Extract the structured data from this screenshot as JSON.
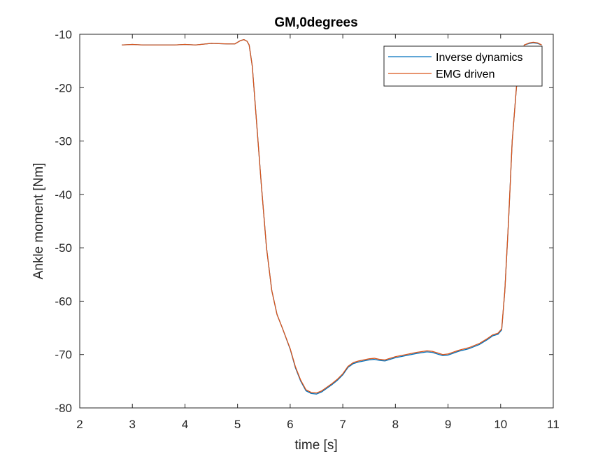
{
  "chart_data": {
    "type": "line",
    "title": "GM,0degrees",
    "xlabel": "time  [s]",
    "ylabel": "Ankle moment [Nm]",
    "xlim": [
      2,
      11
    ],
    "ylim": [
      -80,
      -10
    ],
    "xticks": [
      2,
      3,
      4,
      5,
      6,
      7,
      8,
      9,
      10,
      11
    ],
    "yticks": [
      -80,
      -70,
      -60,
      -50,
      -40,
      -30,
      -20,
      -10
    ],
    "grid": false,
    "legend_position": "top-right",
    "series": [
      {
        "name": "Inverse dynamics",
        "color": "#0072BD",
        "x": [
          2.8,
          3.0,
          3.2,
          3.5,
          3.8,
          4.0,
          4.2,
          4.5,
          4.8,
          4.95,
          5.05,
          5.12,
          5.18,
          5.22,
          5.28,
          5.35,
          5.45,
          5.55,
          5.65,
          5.75,
          5.85,
          6.0,
          6.1,
          6.2,
          6.3,
          6.4,
          6.5,
          6.6,
          6.7,
          6.8,
          6.9,
          7.0,
          7.1,
          7.2,
          7.3,
          7.5,
          7.6,
          7.7,
          7.8,
          8.0,
          8.2,
          8.4,
          8.6,
          8.7,
          8.8,
          8.9,
          9.0,
          9.2,
          9.4,
          9.6,
          9.75,
          9.85,
          9.95,
          10.02,
          10.08,
          10.15,
          10.22,
          10.3,
          10.38,
          10.45,
          10.55,
          10.62,
          10.7,
          10.78
        ],
        "y": [
          -12.0,
          -11.9,
          -12.0,
          -12.0,
          -12.0,
          -11.9,
          -12.0,
          -11.7,
          -11.8,
          -11.8,
          -11.2,
          -11.0,
          -11.3,
          -12.0,
          -16.0,
          -25.0,
          -38.0,
          -50.0,
          -58.0,
          -62.5,
          -65.0,
          -69.0,
          -72.5,
          -75.0,
          -76.8,
          -77.3,
          -77.4,
          -77.0,
          -76.3,
          -75.6,
          -74.8,
          -73.8,
          -72.4,
          -71.7,
          -71.4,
          -71.0,
          -70.9,
          -71.1,
          -71.2,
          -70.6,
          -70.2,
          -69.8,
          -69.5,
          -69.6,
          -69.9,
          -70.2,
          -70.1,
          -69.4,
          -68.9,
          -68.1,
          -67.2,
          -66.5,
          -66.2,
          -65.4,
          -58.0,
          -45.0,
          -30.0,
          -20.0,
          -14.0,
          -12.0,
          -11.7,
          -11.6,
          -11.7,
          -12.0
        ]
      },
      {
        "name": "EMG driven",
        "color": "#D95319",
        "x": [
          2.8,
          3.0,
          3.2,
          3.5,
          3.8,
          4.0,
          4.2,
          4.5,
          4.8,
          4.95,
          5.05,
          5.12,
          5.18,
          5.22,
          5.28,
          5.35,
          5.45,
          5.55,
          5.65,
          5.75,
          5.85,
          6.0,
          6.1,
          6.2,
          6.3,
          6.4,
          6.5,
          6.6,
          6.7,
          6.8,
          6.9,
          7.0,
          7.1,
          7.2,
          7.3,
          7.5,
          7.6,
          7.7,
          7.8,
          8.0,
          8.2,
          8.4,
          8.6,
          8.7,
          8.8,
          8.9,
          9.0,
          9.2,
          9.4,
          9.6,
          9.75,
          9.85,
          9.95,
          10.02,
          10.08,
          10.15,
          10.22,
          10.3,
          10.38,
          10.45,
          10.55,
          10.62,
          10.7,
          10.78
        ],
        "y": [
          -12.0,
          -11.9,
          -12.0,
          -12.0,
          -12.0,
          -11.9,
          -12.0,
          -11.7,
          -11.8,
          -11.8,
          -11.2,
          -11.0,
          -11.3,
          -12.0,
          -16.0,
          -25.0,
          -38.0,
          -50.0,
          -58.0,
          -62.5,
          -65.0,
          -68.9,
          -72.3,
          -74.8,
          -76.6,
          -77.1,
          -77.2,
          -76.8,
          -76.1,
          -75.4,
          -74.6,
          -73.6,
          -72.2,
          -71.5,
          -71.2,
          -70.8,
          -70.7,
          -70.9,
          -71.0,
          -70.4,
          -70.0,
          -69.6,
          -69.3,
          -69.4,
          -69.7,
          -70.0,
          -69.9,
          -69.2,
          -68.7,
          -67.9,
          -67.0,
          -66.3,
          -66.0,
          -65.2,
          -58.0,
          -45.0,
          -30.0,
          -20.0,
          -14.0,
          -12.0,
          -11.6,
          -11.5,
          -11.6,
          -12.0
        ]
      }
    ]
  }
}
